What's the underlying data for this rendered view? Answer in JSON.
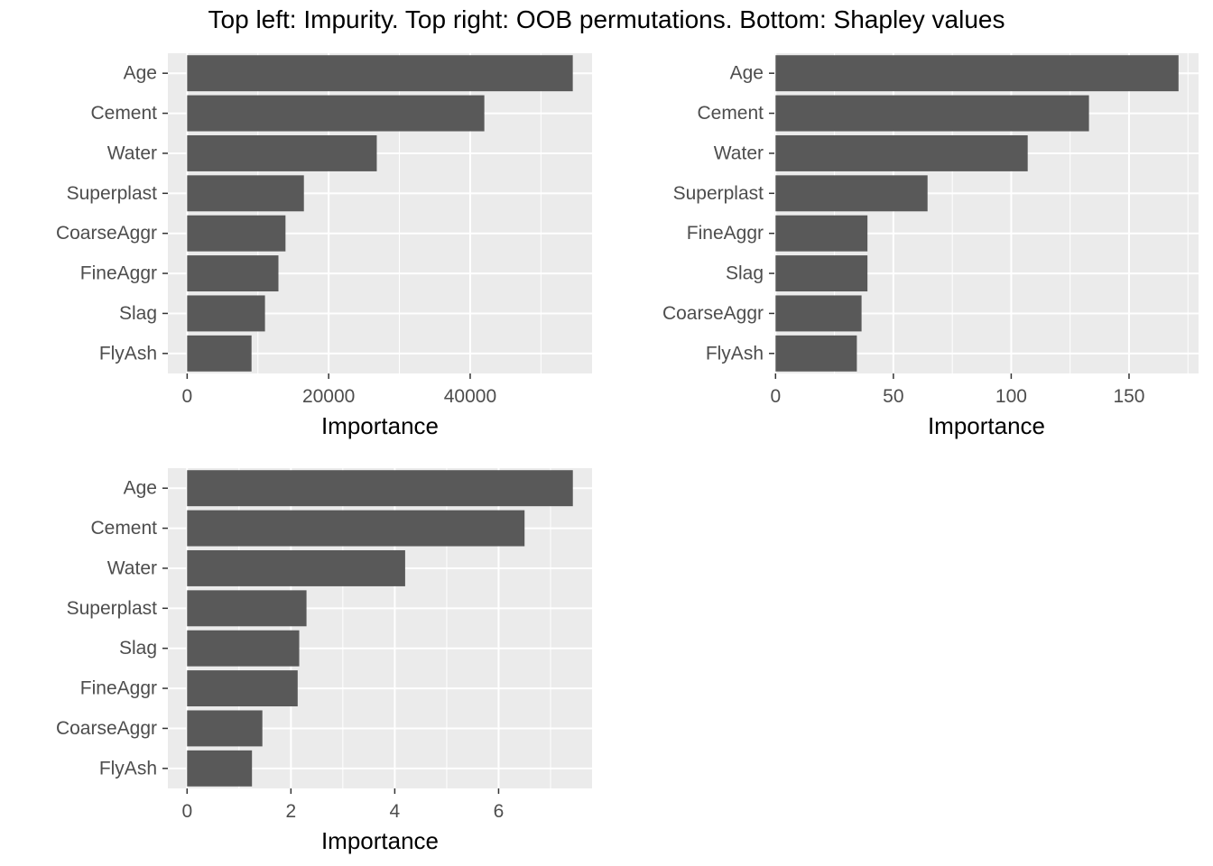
{
  "title": "Top left: Impurity. Top right: OOB permutations. Bottom: Shapley values",
  "colors": {
    "panel_bg": "#ebebeb",
    "grid": "#ffffff",
    "bar": "#595959",
    "tick_text": "#4d4d4d"
  },
  "chart_data": [
    {
      "type": "bar",
      "orientation": "horizontal",
      "categories": [
        "Age",
        "Cement",
        "Water",
        "Superplast",
        "CoarseAggr",
        "FineAggr",
        "Slag",
        "FlyAsh"
      ],
      "values": [
        54500,
        42000,
        26800,
        16500,
        13900,
        12900,
        11000,
        9100
      ],
      "xlabel": "Importance",
      "xlim": [
        -2725,
        57225
      ],
      "xticks": [
        0,
        20000,
        40000
      ],
      "grid": true
    },
    {
      "type": "bar",
      "orientation": "horizontal",
      "categories": [
        "Age",
        "Cement",
        "Water",
        "Superplast",
        "FineAggr",
        "Slag",
        "CoarseAggr",
        "FlyAsh"
      ],
      "values": [
        171,
        133,
        107,
        64.5,
        39,
        39,
        36.5,
        34.5
      ],
      "xlabel": "Importance",
      "xlim": [
        -0.5,
        179.5
      ],
      "xticks": [
        0,
        50,
        100,
        150
      ],
      "grid": true
    },
    {
      "type": "bar",
      "orientation": "horizontal",
      "categories": [
        "Age",
        "Cement",
        "Water",
        "Superplast",
        "Slag",
        "FineAggr",
        "CoarseAggr",
        "FlyAsh"
      ],
      "values": [
        7.43,
        6.5,
        4.2,
        2.3,
        2.16,
        2.13,
        1.45,
        1.25
      ],
      "xlabel": "Importance",
      "xlim": [
        -0.37,
        7.8
      ],
      "xticks": [
        0,
        2,
        4,
        6
      ],
      "grid": true
    }
  ]
}
